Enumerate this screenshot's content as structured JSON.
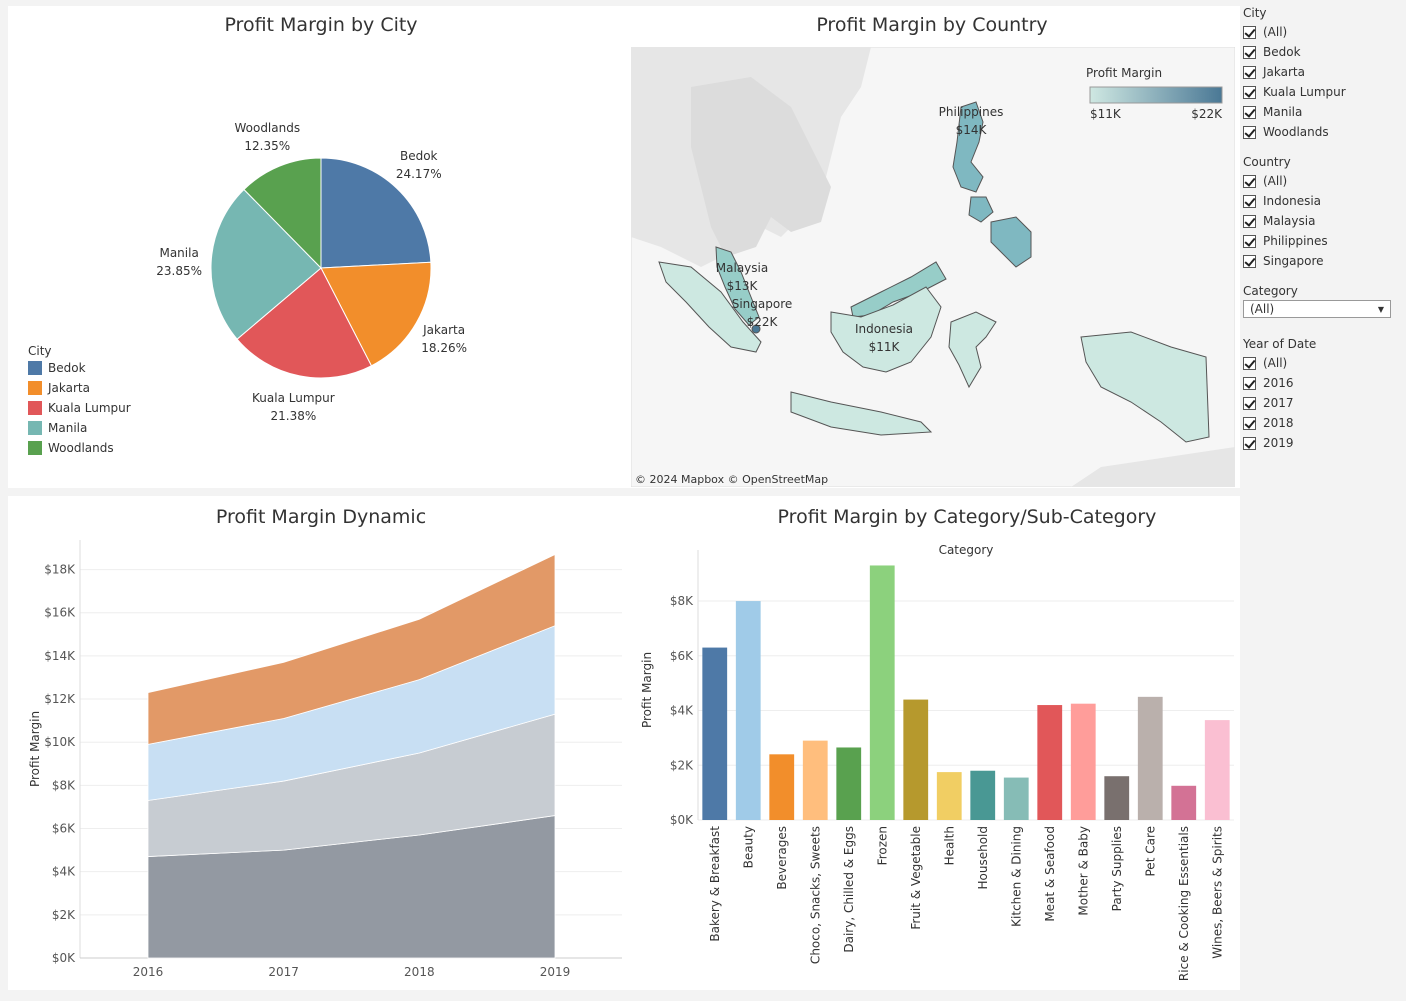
{
  "pie": {
    "title": "Profit Margin by City",
    "legend_title": "City",
    "colors": [
      "#4e79a7",
      "#f28e2b",
      "#e15759",
      "#76b7b2",
      "#59a14f"
    ]
  },
  "map": {
    "title": "Profit Margin by Country",
    "legend_title": "Profit Margin",
    "legend_min": "$11K",
    "legend_max": "$22K",
    "attribution": "© 2024 Mapbox  © OpenStreetMap",
    "labels": [
      {
        "name": "Philippines",
        "value": "$14K"
      },
      {
        "name": "Malaysia",
        "value": "$13K"
      },
      {
        "name": "Singapore",
        "value": "$22K"
      },
      {
        "name": "Indonesia",
        "value": "$11K"
      }
    ]
  },
  "area": {
    "title": "Profit Margin Dynamic",
    "ylabel": "Profit Margin",
    "colors": [
      "#8d939d",
      "#c4c9d0",
      "#c5ddf2",
      "#e0945f"
    ]
  },
  "bar": {
    "title": "Profit Margin by Category/Sub-Category",
    "header": "Category",
    "ylabel": "Profit Margin",
    "colors": [
      "#4e79a7",
      "#a0cbe8",
      "#f28e2b",
      "#ffbe7d",
      "#59a14f",
      "#8cd17d",
      "#b6992d",
      "#f1ce63",
      "#499894",
      "#86bcb6",
      "#e15759",
      "#ff9d9a",
      "#79706e",
      "#bab0ac",
      "#d37295",
      "#fabfd2"
    ]
  },
  "filters": {
    "city": {
      "title": "City",
      "items": [
        "(All)",
        "Bedok",
        "Jakarta",
        "Kuala Lumpur",
        "Manila",
        "Woodlands"
      ]
    },
    "country": {
      "title": "Country",
      "items": [
        "(All)",
        "Indonesia",
        "Malaysia",
        "Philippines",
        "Singapore"
      ]
    },
    "category": {
      "title": "Category",
      "selected": "(All)"
    },
    "year": {
      "title": "Year of Date",
      "items": [
        "(All)",
        "2016",
        "2017",
        "2018",
        "2019"
      ]
    }
  },
  "chart_data": [
    {
      "type": "pie",
      "title": "Profit Margin by City",
      "legend_title": "City",
      "labels": [
        "Bedok",
        "Jakarta",
        "Kuala Lumpur",
        "Manila",
        "Woodlands"
      ],
      "values": [
        24.17,
        18.26,
        21.38,
        23.85,
        12.35
      ],
      "value_labels": [
        "24.17%",
        "18.26%",
        "21.38%",
        "23.85%",
        "12.35%"
      ]
    },
    {
      "type": "area",
      "title": "Profit Margin Dynamic",
      "xlabel": "",
      "ylabel": "Profit Margin",
      "x": [
        "2016",
        "2017",
        "2018",
        "2019"
      ],
      "stacked": true,
      "ylim": [
        0,
        19000
      ],
      "yticks": [
        0,
        2000,
        4000,
        6000,
        8000,
        10000,
        12000,
        14000,
        16000,
        18000
      ],
      "ytick_labels": [
        "$0K",
        "$2K",
        "$4K",
        "$6K",
        "$8K",
        "$10K",
        "$12K",
        "$14K",
        "$16K",
        "$18K"
      ],
      "series": [
        {
          "values": [
            4700,
            5000,
            5700,
            6600
          ]
        },
        {
          "values": [
            2600,
            3200,
            3800,
            4700
          ]
        },
        {
          "values": [
            2600,
            2900,
            3400,
            4100
          ]
        },
        {
          "values": [
            2400,
            2600,
            2800,
            3300
          ]
        }
      ]
    },
    {
      "type": "bar",
      "title": "Profit Margin by Category/Sub-Category",
      "header": "Category",
      "ylabel": "Profit Margin",
      "ylim": [
        0,
        9500
      ],
      "yticks": [
        0,
        2000,
        4000,
        6000,
        8000
      ],
      "ytick_labels": [
        "$0K",
        "$2K",
        "$4K",
        "$6K",
        "$8K"
      ],
      "categories": [
        "Bakery & Breakfast",
        "Beauty",
        "Beverages",
        "Choco, Snacks, Sweets",
        "Dairy, Chilled & Eggs",
        "Frozen",
        "Fruit & Vegetable",
        "Health",
        "Household",
        "Kitchen & Dining",
        "Meat & Seafood",
        "Mother & Baby",
        "Party Supplies",
        "Pet Care",
        "Rice & Cooking Essentials",
        "Wines, Beers & Spirits"
      ],
      "values": [
        6300,
        8000,
        2400,
        2900,
        2650,
        9300,
        4400,
        1750,
        1800,
        1550,
        4200,
        4250,
        1600,
        4500,
        1250,
        3650
      ]
    }
  ]
}
